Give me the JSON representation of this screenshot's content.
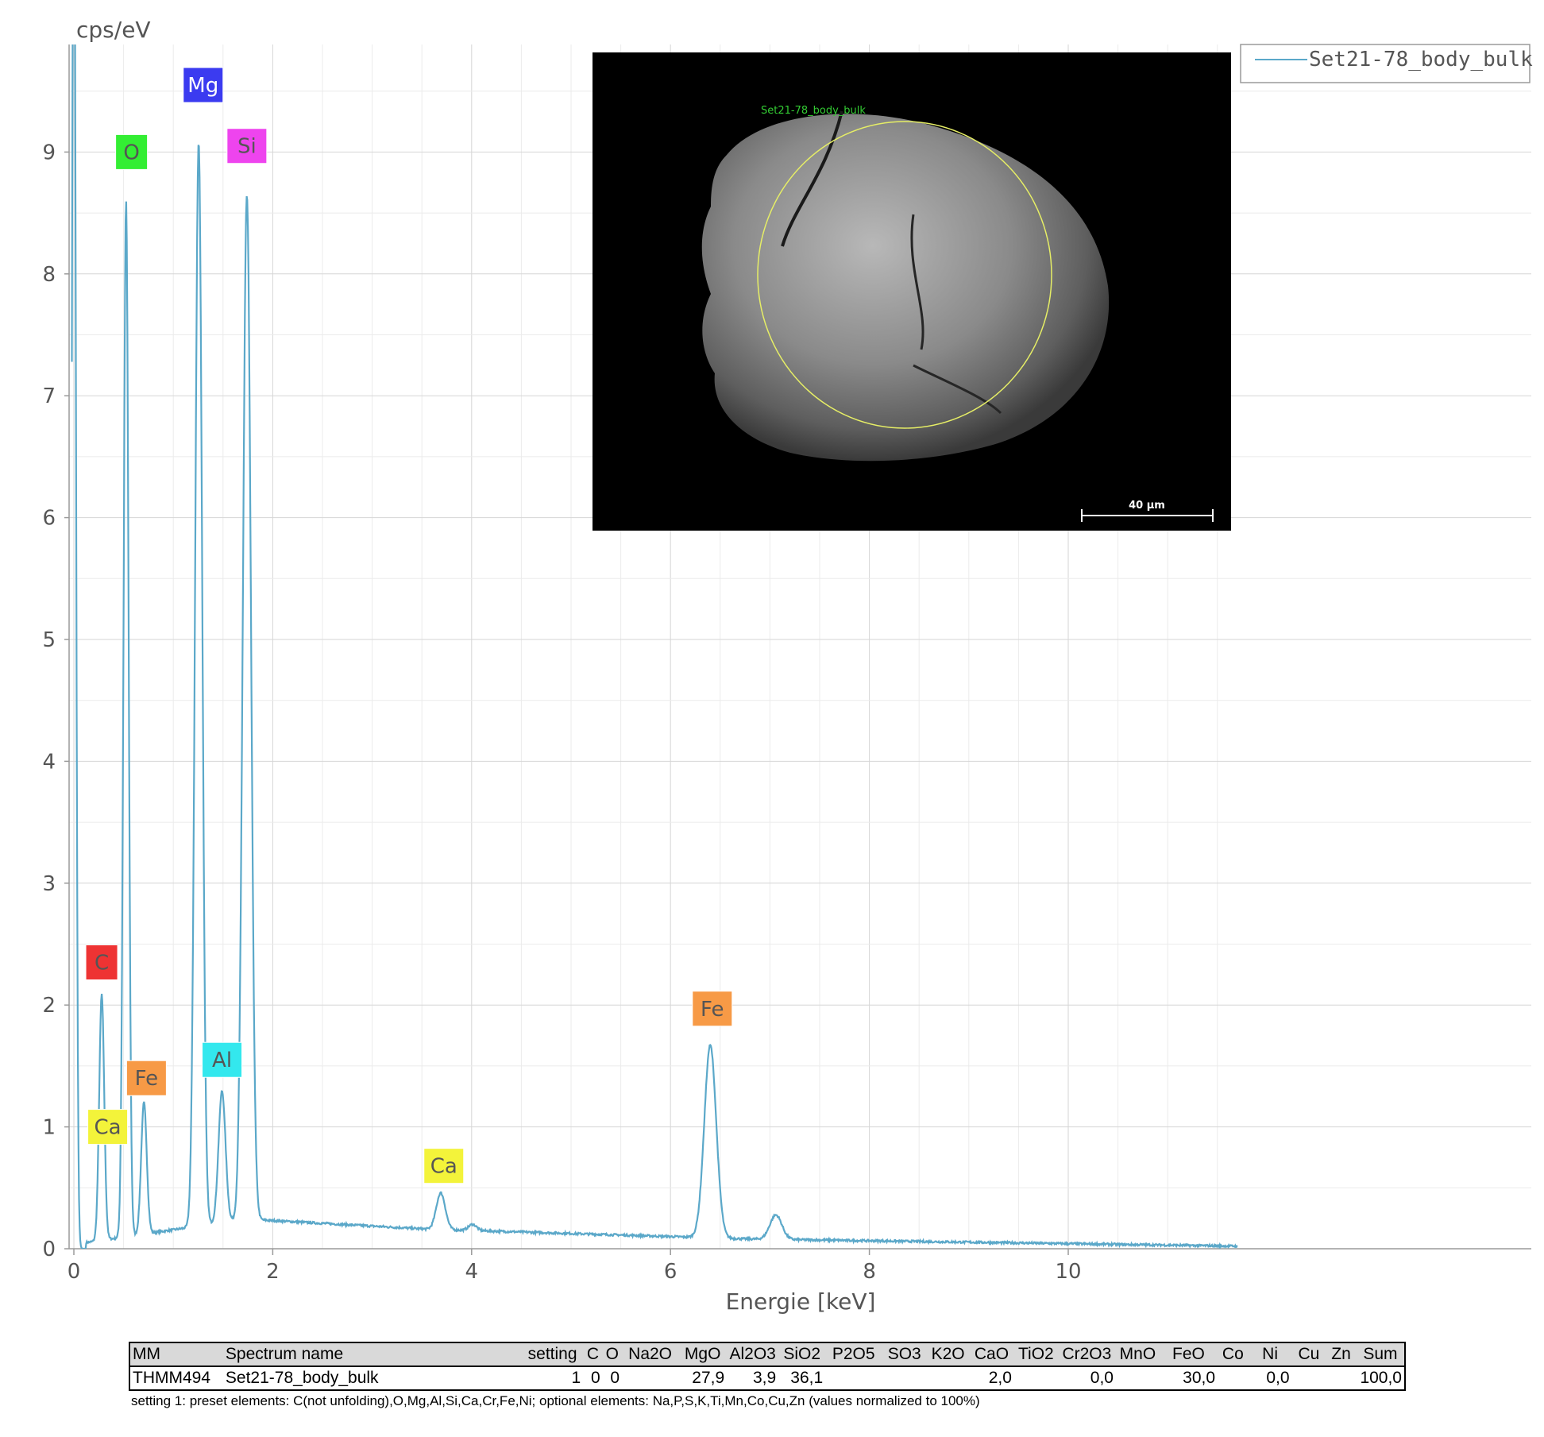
{
  "chart_data": {
    "type": "line",
    "title": "",
    "ylabel": "cps/eV",
    "xlabel": "Energie [keV]",
    "xlim": [
      -0.1,
      11.7
    ],
    "ylim": [
      0,
      9.85
    ],
    "xticks": [
      "0",
      "2",
      "4",
      "6",
      "8",
      "10"
    ],
    "yticks": [
      "0",
      "1",
      "2",
      "3",
      "4",
      "5",
      "6",
      "7",
      "8",
      "9"
    ],
    "grid": true,
    "legend_position": "top-right",
    "series": [
      {
        "name": "Set21-78_body_bulk",
        "color": "#5ba8c9",
        "peaks": [
          {
            "x": 0.0,
            "y": 12.0,
            "w": 0.02
          },
          {
            "x": 0.28,
            "y": 2.02,
            "w": 0.025
          },
          {
            "x": 0.525,
            "y": 8.5,
            "w": 0.025
          },
          {
            "x": 0.705,
            "y": 1.08,
            "w": 0.028
          },
          {
            "x": 1.255,
            "y": 8.9,
            "w": 0.035
          },
          {
            "x": 1.49,
            "y": 1.08,
            "w": 0.035
          },
          {
            "x": 1.74,
            "y": 8.4,
            "w": 0.04
          },
          {
            "x": 3.69,
            "y": 0.3,
            "w": 0.045
          },
          {
            "x": 4.01,
            "y": 0.05,
            "w": 0.04
          },
          {
            "x": 6.4,
            "y": 1.58,
            "w": 0.06
          },
          {
            "x": 7.06,
            "y": 0.2,
            "w": 0.06
          }
        ]
      }
    ],
    "peak_labels": [
      {
        "text": "Mg",
        "x": 1.3,
        "y": 9.55,
        "bg": "#3b3bf0",
        "fg": "#ffffff"
      },
      {
        "text": "O",
        "x": 0.58,
        "y": 9.0,
        "bg": "#33ee33",
        "fg": "#555555"
      },
      {
        "text": "Si",
        "x": 1.74,
        "y": 9.05,
        "bg": "#ee44ee",
        "fg": "#555555"
      },
      {
        "text": "C",
        "x": 0.28,
        "y": 2.35,
        "bg": "#ee3333",
        "fg": "#555555"
      },
      {
        "text": "Fe",
        "x": 0.73,
        "y": 1.4,
        "bg": "#f79a46",
        "fg": "#555555"
      },
      {
        "text": "Ca",
        "x": 0.34,
        "y": 1.0,
        "bg": "#f3f33a",
        "fg": "#555555"
      },
      {
        "text": "Al",
        "x": 1.49,
        "y": 1.55,
        "bg": "#33e8ee",
        "fg": "#555555"
      },
      {
        "text": "Ca",
        "x": 3.72,
        "y": 0.68,
        "bg": "#f3f33a",
        "fg": "#555555"
      },
      {
        "text": "Fe",
        "x": 6.42,
        "y": 1.97,
        "bg": "#f79a46",
        "fg": "#555555"
      }
    ]
  },
  "inset_image": {
    "label": "Set21-78_body_bulk",
    "scale_bar": "40 µm"
  },
  "table": {
    "headers": [
      "MM",
      "Spectrum name",
      "setting",
      "C",
      "O",
      "Na2O",
      "MgO",
      "Al2O3",
      "SiO2",
      "P2O5",
      "SO3",
      "K2O",
      "CaO",
      "TiO2",
      "Cr2O3",
      "MnO",
      "FeO",
      "Co",
      "Ni",
      "Cu",
      "Zn",
      "Sum"
    ],
    "row": [
      "THMM494",
      "Set21-78_body_bulk",
      "1",
      "0",
      "0",
      "",
      "27,9",
      "3,9",
      "36,1",
      "",
      "",
      "",
      "2,0",
      "",
      "0,0",
      "",
      "30,0",
      "",
      "0,0",
      "",
      "",
      "100,0"
    ],
    "note": "setting 1: preset elements: C(not unfolding),O,Mg,Al,Si,Ca,Cr,Fe,Ni; optional elements: Na,P,S,K,Ti,Mn,Co,Cu,Zn (values normalized to 100%)"
  }
}
